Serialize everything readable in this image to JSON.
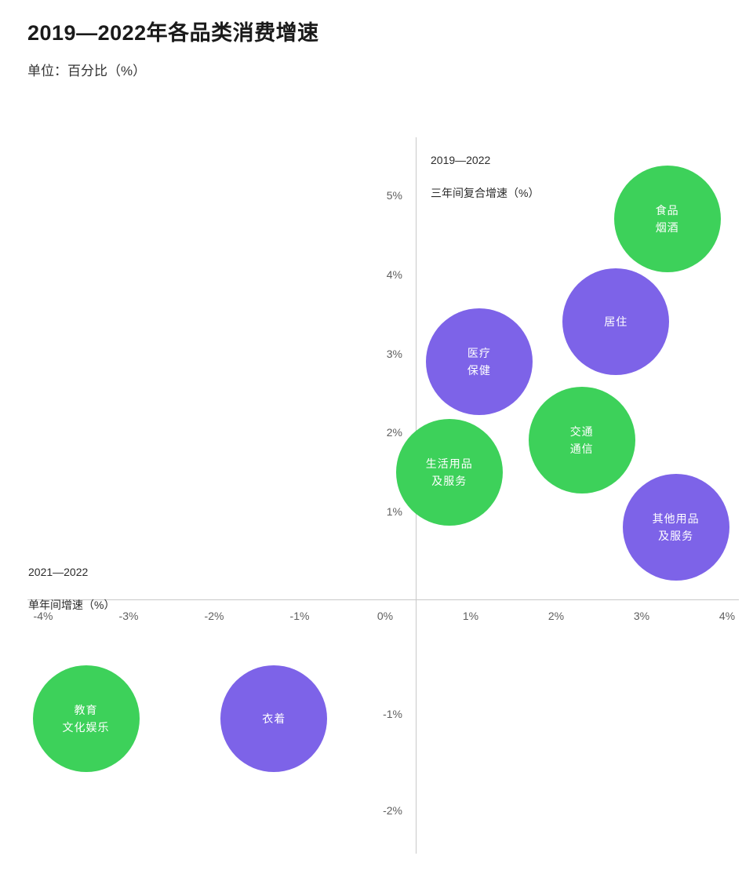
{
  "header": {
    "title": "2019—2022年各品类消费增速",
    "subtitle": "单位：百分比（%）"
  },
  "chart_data": {
    "type": "scatter",
    "title": "2019—2022年各品类消费增速",
    "unit_note": "单位：百分比（%）",
    "x_axis": {
      "label_line1": "2021—2022",
      "label_line2": "单年间增速（%）",
      "ticks": [
        -4,
        -3,
        -2,
        -1,
        0,
        1,
        2,
        3,
        4
      ],
      "tick_suffix": "%",
      "range": [
        -4,
        4
      ]
    },
    "y_axis": {
      "label_line1": "2019—2022",
      "label_line2": "三年间复合增速（%）",
      "ticks": [
        5,
        4,
        3,
        2,
        1,
        -1,
        -2
      ],
      "tick_suffix": "%",
      "range": [
        -2,
        5
      ]
    },
    "colors": {
      "green": "#3dd15a",
      "purple": "#7d63e8"
    },
    "points": [
      {
        "name": "食品烟酒",
        "label": "食品\n烟酒",
        "x": 3.3,
        "y": 4.7,
        "color": "green"
      },
      {
        "name": "居住",
        "label": "居住",
        "x": 2.7,
        "y": 3.4,
        "color": "purple"
      },
      {
        "name": "医疗保健",
        "label": "医疗\n保健",
        "x": 1.1,
        "y": 2.9,
        "color": "purple"
      },
      {
        "name": "交通通信",
        "label": "交通\n通信",
        "x": 2.3,
        "y": 1.9,
        "color": "green"
      },
      {
        "name": "生活用品及服务",
        "label": "生活用品\n及服务",
        "x": 0.75,
        "y": 1.5,
        "color": "green"
      },
      {
        "name": "其他用品及服务",
        "label": "其他用品\n及服务",
        "x": 3.4,
        "y": 0.8,
        "color": "purple"
      },
      {
        "name": "教育文化娱乐",
        "label": "教育\n文化娱乐",
        "x": -3.5,
        "y": -1.05,
        "color": "green"
      },
      {
        "name": "衣着",
        "label": "衣着",
        "x": -1.3,
        "y": -1.05,
        "color": "purple"
      }
    ]
  }
}
